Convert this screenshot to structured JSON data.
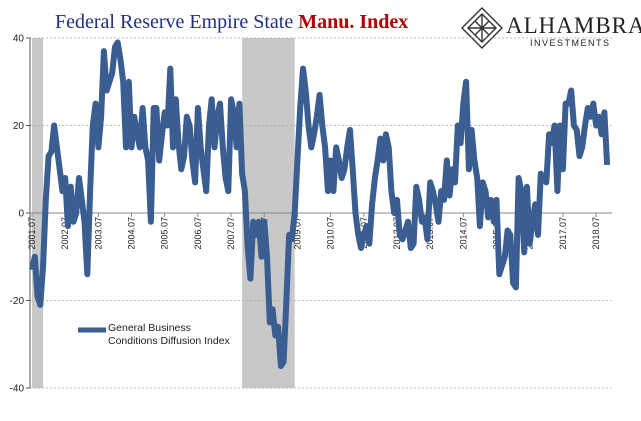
{
  "logo": {
    "name": "ALHAMBRA",
    "tagline": "INVESTMENTS"
  },
  "chart_data": {
    "type": "line",
    "title": "Federal Reserve Empire State",
    "title_highlight": "Manu. Index",
    "categories": [
      "2001.07",
      null,
      null,
      null,
      null,
      null,
      null,
      null,
      null,
      null,
      null,
      null,
      "2002.07",
      null,
      null,
      null,
      null,
      null,
      null,
      null,
      null,
      null,
      null,
      null,
      "2003.07",
      null,
      null,
      null,
      null,
      null,
      null,
      null,
      null,
      null,
      null,
      null,
      "2004.07",
      null,
      null,
      null,
      null,
      null,
      null,
      null,
      null,
      null,
      null,
      null,
      "2005.07",
      null,
      null,
      null,
      null,
      null,
      null,
      null,
      null,
      null,
      null,
      null,
      "2006.07",
      null,
      null,
      null,
      null,
      null,
      null,
      null,
      null,
      null,
      null,
      null,
      "2007.07",
      null,
      null,
      null,
      null,
      null,
      null,
      null,
      null,
      null,
      null,
      null,
      "2008.07",
      null,
      null,
      null,
      null,
      null,
      null,
      null,
      null,
      null,
      null,
      null,
      "2009.07",
      null,
      null,
      null,
      null,
      null,
      null,
      null,
      null,
      null,
      null,
      null,
      "2010.07",
      null,
      null,
      null,
      null,
      null,
      null,
      null,
      null,
      null,
      null,
      null,
      "2011.07",
      null,
      null,
      null,
      null,
      null,
      null,
      null,
      null,
      null,
      null,
      null,
      "2012.07",
      null,
      null,
      null,
      null,
      null,
      null,
      null,
      null,
      null,
      null,
      null,
      "2013.07",
      null,
      null,
      null,
      null,
      null,
      null,
      null,
      null,
      null,
      null,
      null,
      "2014.07",
      null,
      null,
      null,
      null,
      null,
      null,
      null,
      null,
      null,
      null,
      null,
      "2015.07",
      null,
      null,
      null,
      null,
      null,
      null,
      null,
      null,
      null,
      null,
      null,
      "2016.07",
      null,
      null,
      null,
      null,
      null,
      null,
      null,
      null,
      null,
      null,
      null,
      "2017.07",
      null,
      null,
      null,
      null,
      null,
      null,
      null,
      null,
      null,
      null,
      null,
      "2018.07",
      null,
      null,
      null,
      null
    ],
    "series": [
      {
        "name": "General Business Conditions Diffusion Index",
        "color": "#3b5e92",
        "values": [
          -13,
          -10,
          -19,
          -21,
          -12,
          3,
          13,
          14,
          20,
          15,
          10,
          5,
          8,
          -3,
          6,
          -2,
          0,
          8,
          3,
          -2,
          -14,
          5,
          20,
          25,
          15,
          22,
          37,
          28,
          30,
          32,
          38,
          39,
          35,
          30,
          15,
          30,
          15,
          22,
          18,
          15,
          24,
          15,
          12,
          -2,
          24,
          24,
          12,
          18,
          23,
          20,
          33,
          15,
          26,
          16,
          10,
          13,
          22,
          20,
          12,
          7,
          24,
          15,
          10,
          5,
          20,
          26,
          15,
          22,
          25,
          15,
          8,
          5,
          26,
          23,
          15,
          25,
          9,
          5,
          -8,
          -15,
          -2,
          -5,
          -2,
          -10,
          -2,
          -10,
          -25,
          -22,
          -28,
          -26,
          -35,
          -34,
          -20,
          -5,
          -6,
          0,
          12,
          24,
          33,
          28,
          20,
          15,
          18,
          22,
          27,
          20,
          15,
          5,
          12,
          5,
          15,
          12,
          8,
          10,
          15,
          19,
          10,
          0,
          -5,
          -8,
          -5,
          -3,
          -7,
          2,
          8,
          12,
          17,
          12,
          18,
          15,
          5,
          0,
          3,
          -5,
          -6,
          -4,
          -2,
          -8,
          -7,
          6,
          3,
          -2,
          -1,
          -6,
          7,
          5,
          2,
          -2,
          5,
          3,
          12,
          4,
          10,
          7,
          20,
          16,
          25,
          30,
          10,
          19,
          12,
          8,
          -3,
          7,
          5,
          -1,
          3,
          -2,
          3,
          -14,
          -12,
          -10,
          -4,
          -5,
          -16,
          -17,
          8,
          5,
          -9,
          6,
          -7,
          -2,
          2,
          -5,
          9,
          8,
          7,
          18,
          16,
          20,
          5,
          20,
          10,
          25,
          25,
          28,
          20,
          19,
          13,
          15,
          20,
          24,
          22,
          25,
          20,
          22,
          18,
          23,
          11
        ]
      }
    ],
    "recessions": [
      {
        "start": 0,
        "end": 4
      },
      {
        "start": 76,
        "end": 95
      }
    ],
    "recession_color": "#c8c8c8",
    "ylim": [
      -40,
      40
    ],
    "yticks": [
      -40,
      -20,
      0,
      20,
      40
    ],
    "grid": true
  }
}
